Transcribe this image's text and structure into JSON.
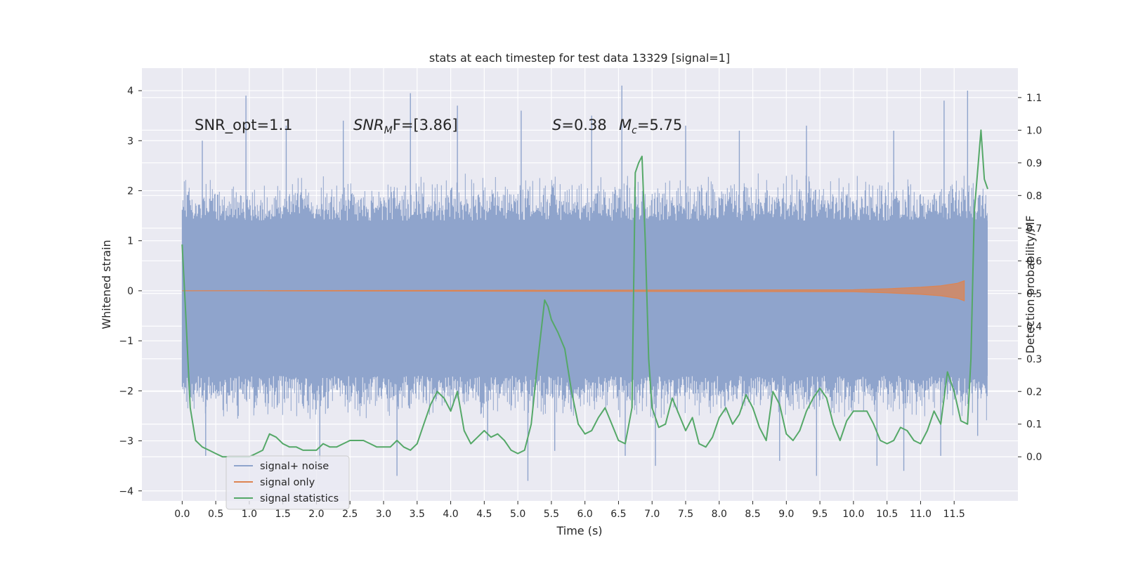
{
  "chart_data": {
    "type": "line",
    "title": "stats at each timestep for test data 13329 [signal=1]",
    "xlabel": "Time (s)",
    "ylabel": "Whitened strain",
    "y2label": "Detection probability/MF",
    "xlim": [
      -0.6,
      12.45
    ],
    "ylim": [
      -4.2,
      4.45
    ],
    "y2lim": [
      -0.135,
      1.19
    ],
    "xticks": [
      0.0,
      0.5,
      1.0,
      1.5,
      2.0,
      2.5,
      3.0,
      3.5,
      4.0,
      4.5,
      5.0,
      5.5,
      6.0,
      6.5,
      7.0,
      7.5,
      8.0,
      8.5,
      9.0,
      9.5,
      10.0,
      10.5,
      11.0,
      11.5
    ],
    "xtick_labels": [
      "0.0",
      "0.5",
      "1.0",
      "1.5",
      "2.0",
      "2.5",
      "3.0",
      "3.5",
      "4.0",
      "4.5",
      "5.0",
      "5.5",
      "6.0",
      "6.5",
      "7.0",
      "7.5",
      "8.0",
      "8.5",
      "9.0",
      "9.5",
      "10.0",
      "10.5",
      "11.0",
      "11.5"
    ],
    "yticks": [
      -4,
      -3,
      -2,
      -1,
      0,
      1,
      2,
      3,
      4
    ],
    "ytick_labels": [
      "−4",
      "−3",
      "−2",
      "−1",
      "0",
      "1",
      "2",
      "3",
      "4"
    ],
    "y2ticks": [
      0.0,
      0.1,
      0.2,
      0.3,
      0.4,
      0.5,
      0.6,
      0.7,
      0.8,
      0.9,
      1.0,
      1.1
    ],
    "y2tick_labels": [
      "0.0",
      "0.1",
      "0.2",
      "0.3",
      "0.4",
      "0.5",
      "0.6",
      "0.7",
      "0.8",
      "0.9",
      "1.0",
      "1.1"
    ],
    "grid": true,
    "legend_position": "lower-left",
    "annotations": {
      "snr_opt": "SNR_opt=1.1",
      "snr_mf_prefix": "SNR",
      "snr_mf_sub": "M",
      "snr_mf_suffix": "F=[3.86]",
      "s_prefix": "S",
      "s_suffix": "=0.38",
      "mc_prefix": "M",
      "mc_sub": "c",
      "mc_suffix": "=5.75"
    },
    "noise_envelope": {
      "name": "signal+ noise",
      "color": "#8fa4cc",
      "x_range": [
        0.0,
        12.0
      ],
      "band": [
        -1.7,
        1.4
      ],
      "typical_peaks": [
        -2.6,
        2.4
      ],
      "spikes_up": [
        [
          0.3,
          3.0
        ],
        [
          0.95,
          3.9
        ],
        [
          1.55,
          3.3
        ],
        [
          2.4,
          3.4
        ],
        [
          3.4,
          3.95
        ],
        [
          4.1,
          3.7
        ],
        [
          5.05,
          3.6
        ],
        [
          6.1,
          3.5
        ],
        [
          6.55,
          4.1
        ],
        [
          7.5,
          3.3
        ],
        [
          8.3,
          3.2
        ],
        [
          9.3,
          3.3
        ],
        [
          10.6,
          3.2
        ],
        [
          11.35,
          3.8
        ],
        [
          11.7,
          4.0
        ]
      ],
      "spikes_down": [
        [
          0.35,
          -3.3
        ],
        [
          2.05,
          -3.4
        ],
        [
          3.2,
          -3.7
        ],
        [
          4.55,
          -3.0
        ],
        [
          5.15,
          -3.8
        ],
        [
          5.55,
          -3.2
        ],
        [
          6.6,
          -3.3
        ],
        [
          7.05,
          -3.5
        ],
        [
          8.9,
          -3.4
        ],
        [
          9.45,
          -3.7
        ],
        [
          10.35,
          -3.5
        ],
        [
          10.75,
          -3.6
        ],
        [
          11.3,
          -3.3
        ],
        [
          11.85,
          -2.9
        ]
      ]
    },
    "series": [
      {
        "name": "signal+ noise",
        "color": "#8fa4cc"
      },
      {
        "name": "signal only",
        "color": "#dd8452",
        "axis": "left",
        "x": [
          0.0,
          10.0,
          10.5,
          11.0,
          11.3,
          11.55,
          11.65
        ],
        "amplitude": [
          0.0,
          0.02,
          0.04,
          0.07,
          0.1,
          0.15,
          0.2
        ]
      },
      {
        "name": "signal statistics",
        "color": "#55a868",
        "axis": "right",
        "x": [
          0.0,
          0.05,
          0.12,
          0.2,
          0.3,
          0.4,
          0.5,
          0.6,
          0.7,
          0.8,
          0.9,
          1.0,
          1.1,
          1.2,
          1.3,
          1.4,
          1.5,
          1.6,
          1.7,
          1.8,
          1.9,
          2.0,
          2.1,
          2.2,
          2.3,
          2.4,
          2.5,
          2.6,
          2.7,
          2.8,
          2.9,
          3.0,
          3.1,
          3.2,
          3.3,
          3.4,
          3.5,
          3.6,
          3.7,
          3.8,
          3.9,
          4.0,
          4.1,
          4.2,
          4.3,
          4.4,
          4.5,
          4.6,
          4.7,
          4.8,
          4.9,
          5.0,
          5.1,
          5.2,
          5.3,
          5.4,
          5.45,
          5.5,
          5.6,
          5.7,
          5.8,
          5.9,
          6.0,
          6.1,
          6.2,
          6.3,
          6.4,
          6.5,
          6.6,
          6.7,
          6.75,
          6.8,
          6.85,
          6.9,
          6.95,
          7.0,
          7.1,
          7.2,
          7.3,
          7.4,
          7.5,
          7.6,
          7.7,
          7.8,
          7.9,
          8.0,
          8.1,
          8.2,
          8.3,
          8.4,
          8.5,
          8.6,
          8.7,
          8.8,
          8.9,
          9.0,
          9.1,
          9.2,
          9.3,
          9.4,
          9.5,
          9.6,
          9.7,
          9.8,
          9.9,
          10.0,
          10.1,
          10.2,
          10.3,
          10.4,
          10.5,
          10.6,
          10.7,
          10.8,
          10.9,
          11.0,
          11.1,
          11.2,
          11.3,
          11.4,
          11.5,
          11.6,
          11.7,
          11.75,
          11.8,
          11.9,
          11.95,
          12.0
        ],
        "y": [
          0.65,
          0.45,
          0.15,
          0.05,
          0.03,
          0.02,
          0.01,
          0.0,
          0.0,
          0.0,
          0.0,
          0.0,
          0.01,
          0.02,
          0.07,
          0.06,
          0.04,
          0.03,
          0.03,
          0.02,
          0.02,
          0.02,
          0.04,
          0.03,
          0.03,
          0.04,
          0.05,
          0.05,
          0.05,
          0.04,
          0.03,
          0.03,
          0.03,
          0.05,
          0.03,
          0.02,
          0.04,
          0.1,
          0.16,
          0.2,
          0.18,
          0.14,
          0.2,
          0.08,
          0.04,
          0.06,
          0.08,
          0.06,
          0.07,
          0.05,
          0.02,
          0.01,
          0.02,
          0.1,
          0.3,
          0.48,
          0.46,
          0.42,
          0.38,
          0.33,
          0.2,
          0.1,
          0.07,
          0.08,
          0.12,
          0.15,
          0.1,
          0.05,
          0.04,
          0.15,
          0.87,
          0.9,
          0.92,
          0.65,
          0.3,
          0.15,
          0.09,
          0.1,
          0.18,
          0.13,
          0.08,
          0.12,
          0.04,
          0.03,
          0.06,
          0.12,
          0.15,
          0.1,
          0.13,
          0.19,
          0.15,
          0.09,
          0.05,
          0.2,
          0.16,
          0.07,
          0.05,
          0.08,
          0.14,
          0.18,
          0.21,
          0.18,
          0.1,
          0.05,
          0.11,
          0.14,
          0.14,
          0.14,
          0.1,
          0.05,
          0.04,
          0.05,
          0.09,
          0.08,
          0.05,
          0.04,
          0.08,
          0.14,
          0.1,
          0.26,
          0.2,
          0.11,
          0.1,
          0.3,
          0.75,
          1.0,
          0.85,
          0.82
        ]
      }
    ]
  }
}
